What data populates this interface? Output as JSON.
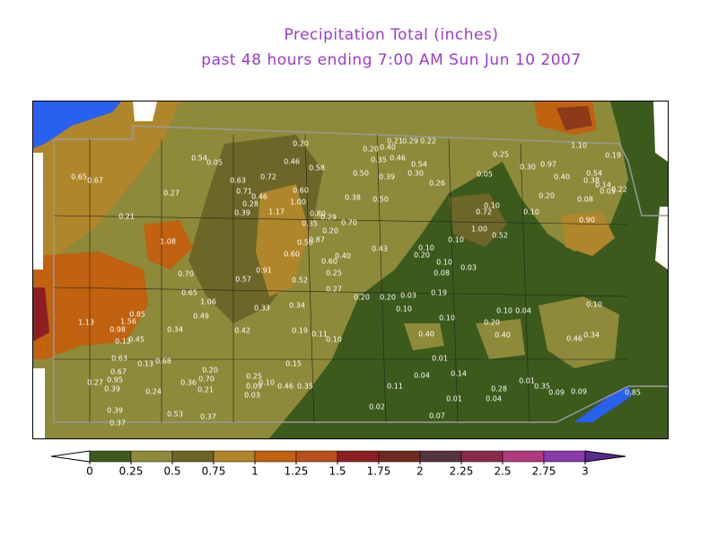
{
  "header": {
    "title": "Precipitation Total (inches)",
    "subtitle": "past 48 hours ending 7:00 AM Sun Jun 10 2007"
  },
  "stations": [
    "0.20",
    "0.20",
    "0.40",
    "0.21",
    "0.29",
    "0.22",
    "0.35",
    "0.46",
    "0.54",
    "0.25",
    "0.30",
    "0.97",
    "1.10",
    "0.19",
    "0.54",
    "0.05",
    "0.46",
    "0.58",
    "0.50",
    "0.39",
    "0.30",
    "0.05",
    "0.40",
    "0.54",
    "0.38",
    "0.14",
    "0.05",
    "0.22",
    "0.63",
    "0.72",
    "0.26",
    "0.67",
    "0.65",
    "0.27",
    "0.71",
    "0.46",
    "0.60",
    "0.20",
    "0.08",
    "0.38",
    "0.50",
    "1.00",
    "0.28",
    "0.39",
    "1.17",
    "0.72",
    "0.10",
    "0.10",
    "0.90",
    "0.21",
    "0.80",
    "0.35",
    "0.29",
    "0.70",
    "1.00",
    "0.52",
    "0.20",
    "0.50",
    "0.87",
    "0.10",
    "1.08",
    "0.43",
    "0.10",
    "0.60",
    "0.40",
    "0.20",
    "0.10",
    "0.03",
    "0.70",
    "0.91",
    "0.60",
    "0.25",
    "0.08",
    "0.57",
    "0.52",
    "0.27",
    "0.65",
    "1.06",
    "0.20",
    "0.20",
    "0.03",
    "0.19",
    "0.10",
    "0.10",
    "0.04",
    "0.10",
    "0.85",
    "0.49",
    "0.33",
    "0.34",
    "1.13",
    "1.56",
    "0.98",
    "0.10",
    "0.20",
    "0.12",
    "0.45",
    "0.34",
    "0.42",
    "0.19",
    "0.11",
    "0.10",
    "0.40",
    "0.40",
    "0.46",
    "0.34",
    "0.63",
    "0.13",
    "0.68",
    "0.20",
    "0.15",
    "0.01",
    "0.67",
    "0.27",
    "0.95",
    "0.39",
    "0.36",
    "0.70",
    "0.21",
    "0.24",
    "0.25",
    "0.10",
    "0.09",
    "0.46",
    "0.35",
    "0.04",
    "0.14",
    "0.01",
    "0.35",
    "0.11",
    "0.28",
    "0.09",
    "0.09",
    "0.03",
    "0.01",
    "0.04",
    "0.02",
    "0.39",
    "0.53",
    "0.37",
    "0.07",
    "0.37",
    "0.85"
  ],
  "colorbar": {
    "ticks": [
      0,
      0.25,
      0.5,
      0.75,
      1,
      1.25,
      1.5,
      1.75,
      2,
      2.25,
      2.5,
      2.75,
      3
    ],
    "colors": [
      "#3c5a1c",
      "#8d8a3a",
      "#6d6629",
      "#b0862a",
      "#c0620f",
      "#b8501c",
      "#8c1f22",
      "#6e2a1e",
      "#553340",
      "#8a2a4a",
      "#b03a7e",
      "#8a3aaa"
    ],
    "under_color": "#ffffff",
    "over_color": "#5a2a90"
  }
}
